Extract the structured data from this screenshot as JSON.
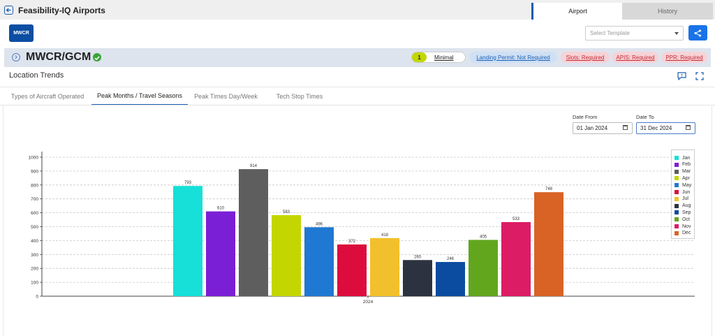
{
  "app": {
    "title": "Feasibility-IQ Airports"
  },
  "top_tabs": {
    "airport": "Airport",
    "history": "History"
  },
  "badge": "MWCR",
  "template_select": {
    "placeholder": "Select Template"
  },
  "airport": {
    "code": "MWCR/GCM",
    "level": "1",
    "level_label": "Minimal",
    "landing_permit": "Landing Permit: Not Required",
    "slots": "Slots: Required",
    "apis": "APIS: Required",
    "ppr": "PPR: Required"
  },
  "section": {
    "title": "Location Trends"
  },
  "subtabs": [
    "Types of Aircraft Operated",
    "Peak Months / Travel Seasons",
    "Peak Times Day/Week",
    "Tech Stop Times"
  ],
  "active_subtab": 1,
  "dates": {
    "from_label": "Date From",
    "from_value": "01 Jan 2024",
    "to_label": "Date To",
    "to_value": "31 Dec 2024"
  },
  "colors": {
    "accent": "#0b4ea2",
    "share": "#1a73e8",
    "required": "#c62834",
    "minimal": "#c3d600"
  },
  "chart_data": {
    "type": "bar",
    "categories": [
      "2024"
    ],
    "series": [
      {
        "name": "Jan",
        "values": [
          793
        ],
        "color": "#16e0d8"
      },
      {
        "name": "Feb",
        "values": [
          610
        ],
        "color": "#7b1fd6"
      },
      {
        "name": "Mar",
        "values": [
          914
        ],
        "color": "#5e5e5e"
      },
      {
        "name": "Apr",
        "values": [
          583
        ],
        "color": "#c3d600"
      },
      {
        "name": "May",
        "values": [
          496
        ],
        "color": "#1f78d1"
      },
      {
        "name": "Jun",
        "values": [
          372
        ],
        "color": "#dc0d3c"
      },
      {
        "name": "Jul",
        "values": [
          418
        ],
        "color": "#f2c02c"
      },
      {
        "name": "Aug",
        "values": [
          260
        ],
        "color": "#2c3240"
      },
      {
        "name": "Sep",
        "values": [
          246
        ],
        "color": "#0b4ca0"
      },
      {
        "name": "Oct",
        "values": [
          405
        ],
        "color": "#62a61e"
      },
      {
        "name": "Nov",
        "values": [
          533
        ],
        "color": "#dc1c64"
      },
      {
        "name": "Dec",
        "values": [
          748
        ],
        "color": "#d96325"
      }
    ],
    "yticks": [
      "0",
      "100",
      "200",
      "300",
      "400",
      "500",
      "600",
      "700",
      "800",
      "900",
      "1000"
    ],
    "ylim": [
      0,
      1000
    ],
    "grid": true,
    "legend": "right"
  }
}
